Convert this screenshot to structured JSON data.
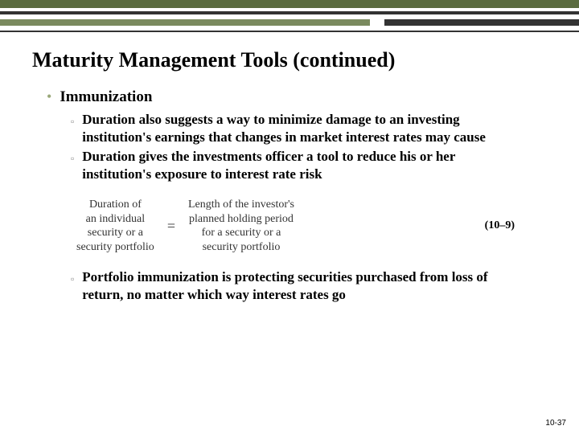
{
  "slide": {
    "title": "Maturity Management Tools (continued)",
    "main_bullet": "Immunization",
    "sub_bullet_1": "Duration also suggests a way to minimize damage to an investing institution's earnings that changes in market interest rates may cause",
    "sub_bullet_2": "Duration gives the investments officer a tool to reduce his or her institution's exposure to interest rate risk",
    "sub_bullet_3": "Portfolio immunization is protecting securities purchased from loss of return, no matter which way interest rates go",
    "equation": {
      "left_line_1": "Duration of",
      "left_line_2": "an individual",
      "left_line_3": "security or a",
      "left_line_4": "security portfolio",
      "right_line_1": "Length of the investor's",
      "right_line_2": "planned holding period",
      "right_line_3": "for a security or a",
      "right_line_4": "security portfolio",
      "ref": "(10–9)"
    },
    "page_number": "10-37"
  },
  "colors": {
    "accent_green": "#5a6b3f",
    "light_green": "#7a8a5f",
    "dark_bar": "#333333",
    "bullet_green": "#9aa87a",
    "sub_marker": "#888888"
  }
}
